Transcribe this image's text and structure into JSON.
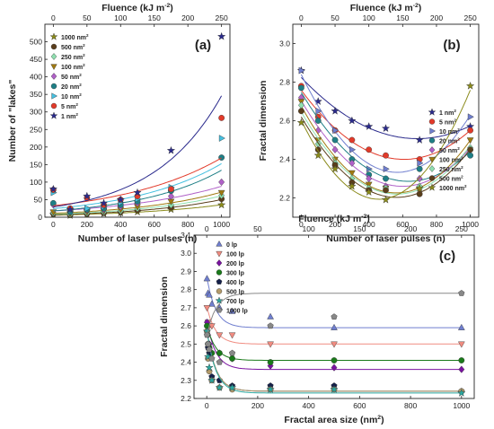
{
  "colors": {
    "olive": "#8a8a1a",
    "brown": "#5a3e1b",
    "mint": "#8fe0b0",
    "gold": "#a07a10",
    "violet": "#b060c8",
    "teal": "#1e7f86",
    "sky": "#45c0e0",
    "red": "#e23a2a",
    "navy": "#2a2a8c",
    "steel": "#6f7ecf",
    "salmon": "#f08b80",
    "purple": "#7a12a0",
    "green": "#1a7a1a",
    "darknavy": "#15204a",
    "tan": "#b39a6a",
    "teal2": "#2aa8a0",
    "grey": "#888888"
  },
  "chart_data": [
    {
      "panel_label": "(a)",
      "type": "scatter",
      "xlabel": "Number of laser pulses (n)",
      "ylabel": "Number of \"lakes\"",
      "top_axis_label": "Fluence (kJ m-2)",
      "top_axis_label_main": "Fluence (kJ m",
      "top_axis_label_exp": "-2",
      "top_axis_label_tail": ")",
      "xlim": [
        -50,
        1050
      ],
      "ylim": [
        0,
        550
      ],
      "xticks": [
        0,
        200,
        400,
        600,
        800,
        1000
      ],
      "yticks": [
        0,
        50,
        100,
        150,
        200,
        250,
        300,
        350,
        400,
        450,
        500
      ],
      "top_ticks": [
        0,
        50,
        100,
        150,
        200,
        250
      ],
      "fluence_per_pulse": 0.25,
      "x": [
        0,
        100,
        200,
        300,
        400,
        500,
        700,
        1000
      ],
      "legend_position": "top-left",
      "series": [
        {
          "name": "1000 nm2",
          "legend_main": "1000 nm",
          "legend_exp": "2",
          "marker": "star",
          "color": "olive",
          "y": [
            8,
            5,
            8,
            10,
            12,
            15,
            22,
            35
          ]
        },
        {
          "name": "500 nm2",
          "legend_main": "500 nm",
          "legend_exp": "2",
          "marker": "circle",
          "color": "brown",
          "y": [
            10,
            6,
            10,
            12,
            15,
            20,
            28,
            52
          ]
        },
        {
          "name": "250 nm2",
          "legend_main": "250 nm",
          "legend_exp": "2",
          "marker": "diamond",
          "color": "mint",
          "y": [
            12,
            8,
            12,
            15,
            18,
            25,
            35,
            62
          ]
        },
        {
          "name": "100 nm2",
          "legend_main": "100 nm",
          "legend_exp": "2",
          "marker": "tri-down",
          "color": "gold",
          "y": [
            15,
            10,
            15,
            18,
            22,
            30,
            45,
            70
          ]
        },
        {
          "name": "50 nm2",
          "legend_main": "50 nm",
          "legend_exp": "2",
          "marker": "diamond",
          "color": "violet",
          "y": [
            35,
            15,
            20,
            22,
            30,
            40,
            60,
            100
          ]
        },
        {
          "name": "20 nm2",
          "legend_main": "20 nm",
          "legend_exp": "2",
          "marker": "circle",
          "color": "teal",
          "y": [
            40,
            15,
            22,
            25,
            35,
            45,
            75,
            170
          ]
        },
        {
          "name": "10 nm2",
          "legend_main": "10 nm",
          "legend_exp": "2",
          "marker": "tri-right",
          "color": "sky",
          "y": [
            70,
            20,
            25,
            30,
            42,
            52,
            85,
            225
          ]
        },
        {
          "name": "5 nm2",
          "legend_main": "5 nm",
          "legend_exp": "2",
          "marker": "circle",
          "color": "red",
          "y": [
            78,
            25,
            55,
            35,
            50,
            60,
            80,
            283
          ]
        },
        {
          "name": "1 nm2",
          "legend_main": "1 nm",
          "legend_exp": "2",
          "marker": "star",
          "color": "navy",
          "y": [
            80,
            22,
            60,
            40,
            50,
            70,
            190,
            515
          ]
        }
      ]
    },
    {
      "panel_label": "(b)",
      "type": "scatter",
      "xlabel": "Number of laser pulses (n)",
      "ylabel": "Fractal dimension",
      "top_axis_label": "Fluence (kJ m-2)",
      "top_axis_label_main": "Fluence (kJ m",
      "top_axis_label_exp": "-2",
      "top_axis_label_tail": ")",
      "xlim": [
        -50,
        1050
      ],
      "ylim": [
        2.1,
        3.1
      ],
      "xticks": [
        0,
        200,
        400,
        600,
        800,
        1000
      ],
      "yticks": [
        2.2,
        2.4,
        2.6,
        2.8,
        3.0
      ],
      "top_ticks": [
        0,
        50,
        100,
        150,
        200,
        250
      ],
      "fluence_per_pulse": 0.25,
      "x": [
        0,
        100,
        200,
        300,
        400,
        500,
        700,
        1000
      ],
      "legend_position": "top-right",
      "series": [
        {
          "name": "1 nm2",
          "legend_main": "1 nm",
          "legend_exp": "2",
          "marker": "star",
          "color": "navy",
          "y": [
            2.86,
            2.7,
            2.65,
            2.6,
            2.57,
            2.56,
            2.5,
            2.57
          ]
        },
        {
          "name": "5 nm2",
          "legend_main": "5 nm",
          "legend_exp": "2",
          "marker": "circle",
          "color": "red",
          "y": [
            2.78,
            2.62,
            2.55,
            2.5,
            2.45,
            2.42,
            2.4,
            2.55
          ]
        },
        {
          "name": "10 nm2",
          "legend_main": "10 nm",
          "legend_exp": "2",
          "marker": "tri-right",
          "color": "steel",
          "y": [
            2.86,
            2.65,
            2.55,
            2.45,
            2.35,
            2.35,
            2.38,
            2.62
          ]
        },
        {
          "name": "20 nm2",
          "legend_main": "20 nm",
          "legend_exp": "2",
          "marker": "circle",
          "color": "teal",
          "y": [
            2.77,
            2.6,
            2.5,
            2.4,
            2.32,
            2.3,
            2.35,
            2.42
          ]
        },
        {
          "name": "50 nm2",
          "legend_main": "50 nm",
          "legend_exp": "2",
          "marker": "diamond",
          "color": "violet",
          "y": [
            2.72,
            2.55,
            2.45,
            2.38,
            2.3,
            2.26,
            2.3,
            2.45
          ]
        },
        {
          "name": "100 nm2",
          "legend_main": "100 nm",
          "legend_exp": "2",
          "marker": "tri-down",
          "color": "gold",
          "y": [
            2.7,
            2.5,
            2.4,
            2.33,
            2.27,
            2.25,
            2.24,
            2.5
          ]
        },
        {
          "name": "250 nm2",
          "legend_main": "250 nm",
          "legend_exp": "2",
          "marker": "diamond",
          "color": "mint",
          "y": [
            2.68,
            2.48,
            2.38,
            2.3,
            2.25,
            2.25,
            2.26,
            2.46
          ]
        },
        {
          "name": "500 nm2",
          "legend_main": "500 nm",
          "legend_exp": "2",
          "marker": "circle",
          "color": "brown",
          "y": [
            2.65,
            2.45,
            2.37,
            2.28,
            2.24,
            2.24,
            2.22,
            2.45
          ]
        },
        {
          "name": "1000 nm2",
          "legend_main": "1000 nm",
          "legend_exp": "2",
          "marker": "star",
          "color": "olive",
          "y": [
            2.59,
            2.42,
            2.35,
            2.26,
            2.23,
            2.19,
            2.25,
            2.78
          ]
        }
      ]
    },
    {
      "panel_label": "(c)",
      "type": "scatter",
      "xlabel": "Fractal area size (nm2)",
      "xlabel_main": "Fractal area size (nm",
      "xlabel_exp": "2",
      "xlabel_tail": ")",
      "ylabel": "Fractal dimension",
      "top_axis_label": "Fluence (kJ m-2)",
      "top_axis_label_main": "Fluence (kJ m",
      "top_axis_label_exp": "-2",
      "top_axis_label_tail": ")",
      "xlim": [
        -50,
        1050
      ],
      "ylim": [
        2.2,
        3.1
      ],
      "xticks": [
        0,
        200,
        400,
        600,
        800,
        1000
      ],
      "yticks": [
        2.2,
        2.3,
        2.4,
        2.5,
        2.6,
        2.7,
        2.8,
        2.9,
        3.0,
        3.1
      ],
      "top_ticks": [
        0,
        50,
        100,
        150,
        200,
        250
      ],
      "fluence_per_pulse": 0.25,
      "x": [
        1,
        5,
        10,
        20,
        50,
        100,
        250,
        500,
        1000
      ],
      "legend_position": "top-left",
      "series": [
        {
          "name": "0 lp",
          "marker": "tri-up",
          "color": "steel",
          "y": [
            2.86,
            2.78,
            2.77,
            2.72,
            2.7,
            2.68,
            2.65,
            2.59,
            2.59
          ]
        },
        {
          "name": "100 lp",
          "marker": "tri-down",
          "color": "salmon",
          "y": [
            2.7,
            2.62,
            2.6,
            2.6,
            2.55,
            2.55,
            2.5,
            2.5,
            2.5
          ]
        },
        {
          "name": "200 lp",
          "marker": "diamond",
          "color": "purple",
          "y": [
            2.62,
            2.55,
            2.5,
            2.45,
            2.45,
            2.42,
            2.38,
            2.37,
            2.36
          ]
        },
        {
          "name": "300 lp",
          "marker": "circle",
          "color": "green",
          "y": [
            2.6,
            2.5,
            2.48,
            2.45,
            2.45,
            2.42,
            2.4,
            2.41,
            2.41
          ]
        },
        {
          "name": "400 lp",
          "marker": "pentagon",
          "color": "darknavy",
          "y": [
            2.57,
            2.48,
            2.45,
            2.32,
            2.3,
            2.27,
            2.27,
            2.27,
            2.24
          ]
        },
        {
          "name": "500 lp",
          "marker": "circle",
          "color": "tan",
          "y": [
            2.57,
            2.42,
            2.35,
            2.3,
            2.26,
            2.25,
            2.25,
            2.25,
            2.24
          ]
        },
        {
          "name": "700 lp",
          "marker": "star",
          "color": "teal2",
          "y": [
            2.57,
            2.43,
            2.37,
            2.3,
            2.26,
            2.26,
            2.25,
            2.25,
            2.23
          ]
        },
        {
          "name": "1000 lp",
          "marker": "pentagon",
          "color": "grey",
          "y": [
            2.55,
            2.5,
            2.47,
            2.42,
            2.4,
            2.45,
            2.6,
            2.65,
            2.78
          ]
        }
      ]
    }
  ]
}
